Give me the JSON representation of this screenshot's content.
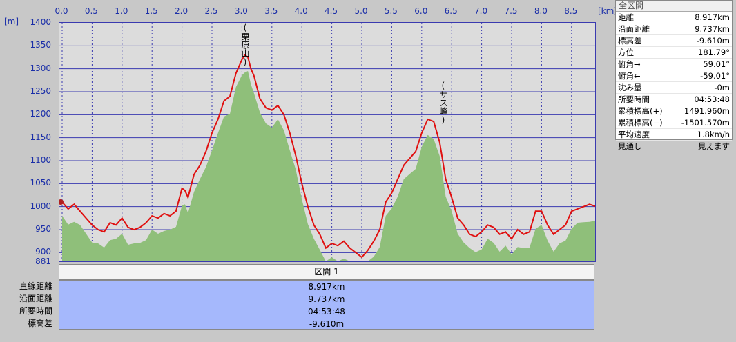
{
  "axis": {
    "x_unit": "[km]",
    "y_unit": "[m]",
    "x_ticks": [
      "0.0",
      "0.5",
      "1.0",
      "1.5",
      "2.0",
      "2.5",
      "3.0",
      "3.5",
      "4.0",
      "4.5",
      "5.0",
      "5.5",
      "6.0",
      "6.5",
      "7.0",
      "7.5",
      "8.0",
      "8.5"
    ],
    "y_ticks": [
      "1400",
      "1350",
      "1300",
      "1250",
      "1200",
      "1150",
      "1100",
      "1050",
      "1000",
      "950",
      "900"
    ],
    "y_min_label": "881"
  },
  "chart_data": {
    "type": "area",
    "xlim": [
      0,
      8.917
    ],
    "ylim": [
      881,
      1400
    ],
    "grid": true,
    "xlabel": "[km]",
    "ylabel": "[m]",
    "series": [
      {
        "color": "#e01010",
        "x": [
          0,
          0.1,
          0.2,
          0.3,
          0.4,
          0.5,
          0.6,
          0.7,
          0.8,
          0.9,
          1.0,
          1.1,
          1.2,
          1.3,
          1.4,
          1.5,
          1.6,
          1.7,
          1.8,
          1.9,
          2.0,
          2.05,
          2.1,
          2.2,
          2.3,
          2.4,
          2.5,
          2.6,
          2.7,
          2.8,
          2.9,
          3.0,
          3.05,
          3.1,
          3.15,
          3.2,
          3.3,
          3.4,
          3.5,
          3.6,
          3.7,
          3.8,
          3.9,
          4.0,
          4.1,
          4.2,
          4.3,
          4.4,
          4.5,
          4.6,
          4.7,
          4.8,
          4.9,
          5.0,
          5.1,
          5.2,
          5.3,
          5.4,
          5.5,
          5.6,
          5.7,
          5.8,
          5.9,
          6.0,
          6.1,
          6.2,
          6.3,
          6.35,
          6.4,
          6.5,
          6.6,
          6.7,
          6.8,
          6.9,
          7.0,
          7.1,
          7.2,
          7.3,
          7.4,
          7.5,
          7.6,
          7.7,
          7.8,
          7.9,
          8.0,
          8.1,
          8.2,
          8.3,
          8.4,
          8.5,
          8.6,
          8.7,
          8.8,
          8.917
        ],
        "y": [
          1010,
          995,
          1005,
          990,
          975,
          960,
          950,
          945,
          965,
          960,
          975,
          955,
          950,
          955,
          965,
          980,
          975,
          985,
          980,
          990,
          1040,
          1035,
          1020,
          1070,
          1090,
          1120,
          1160,
          1190,
          1230,
          1240,
          1290,
          1320,
          1330,
          1325,
          1300,
          1285,
          1235,
          1215,
          1210,
          1220,
          1200,
          1160,
          1110,
          1050,
          1000,
          960,
          940,
          910,
          920,
          915,
          925,
          910,
          900,
          890,
          905,
          925,
          950,
          1010,
          1030,
          1060,
          1090,
          1105,
          1120,
          1160,
          1190,
          1185,
          1140,
          1100,
          1060,
          1020,
          975,
          960,
          940,
          935,
          945,
          960,
          955,
          940,
          945,
          930,
          950,
          940,
          945,
          990,
          990,
          960,
          940,
          950,
          960,
          990,
          995,
          1000,
          1005,
          1000
        ]
      }
    ]
  },
  "peaks": [
    {
      "label": "(栗原山)"
    },
    {
      "label": "(サス峰)"
    }
  ],
  "summary_panel": {
    "title": "全区間",
    "rows": [
      {
        "label": "距離",
        "value": "8.917km"
      },
      {
        "label": "沿面距離",
        "value": "9.737km"
      },
      {
        "label": "標高差",
        "value": "-9.610m"
      },
      {
        "label": "方位",
        "value": "181.79°"
      },
      {
        "label": "俯角→",
        "value": "59.01°"
      },
      {
        "label": "俯角←",
        "value": "-59.01°"
      },
      {
        "label": "沈み量",
        "value": "-0m"
      },
      {
        "label": "所要時間",
        "value": "04:53:48"
      },
      {
        "label": "累積標高(+)",
        "value": "1491.960m"
      },
      {
        "label": "累積標高(−)",
        "value": "-1501.570m"
      },
      {
        "label": "平均速度",
        "value": "1.8km/h"
      },
      {
        "label": "見通し",
        "value": "見えます"
      }
    ]
  },
  "segment": {
    "header": "区間 1",
    "rows": [
      {
        "label": "直線距離",
        "value": "8.917km"
      },
      {
        "label": "沿面距離",
        "value": "9.737km"
      },
      {
        "label": "所要時間",
        "value": "04:53:48"
      },
      {
        "label": "標高差",
        "value": "-9.610m"
      }
    ]
  },
  "colors": {
    "profile_line": "#e01010",
    "terrain_fill": "#8fbf7a",
    "plot_bg": "#dcdcdc",
    "grid": "#3a3ab0",
    "axis_text": "#1a2ea8",
    "segment_bg": "#a5b8fc"
  }
}
